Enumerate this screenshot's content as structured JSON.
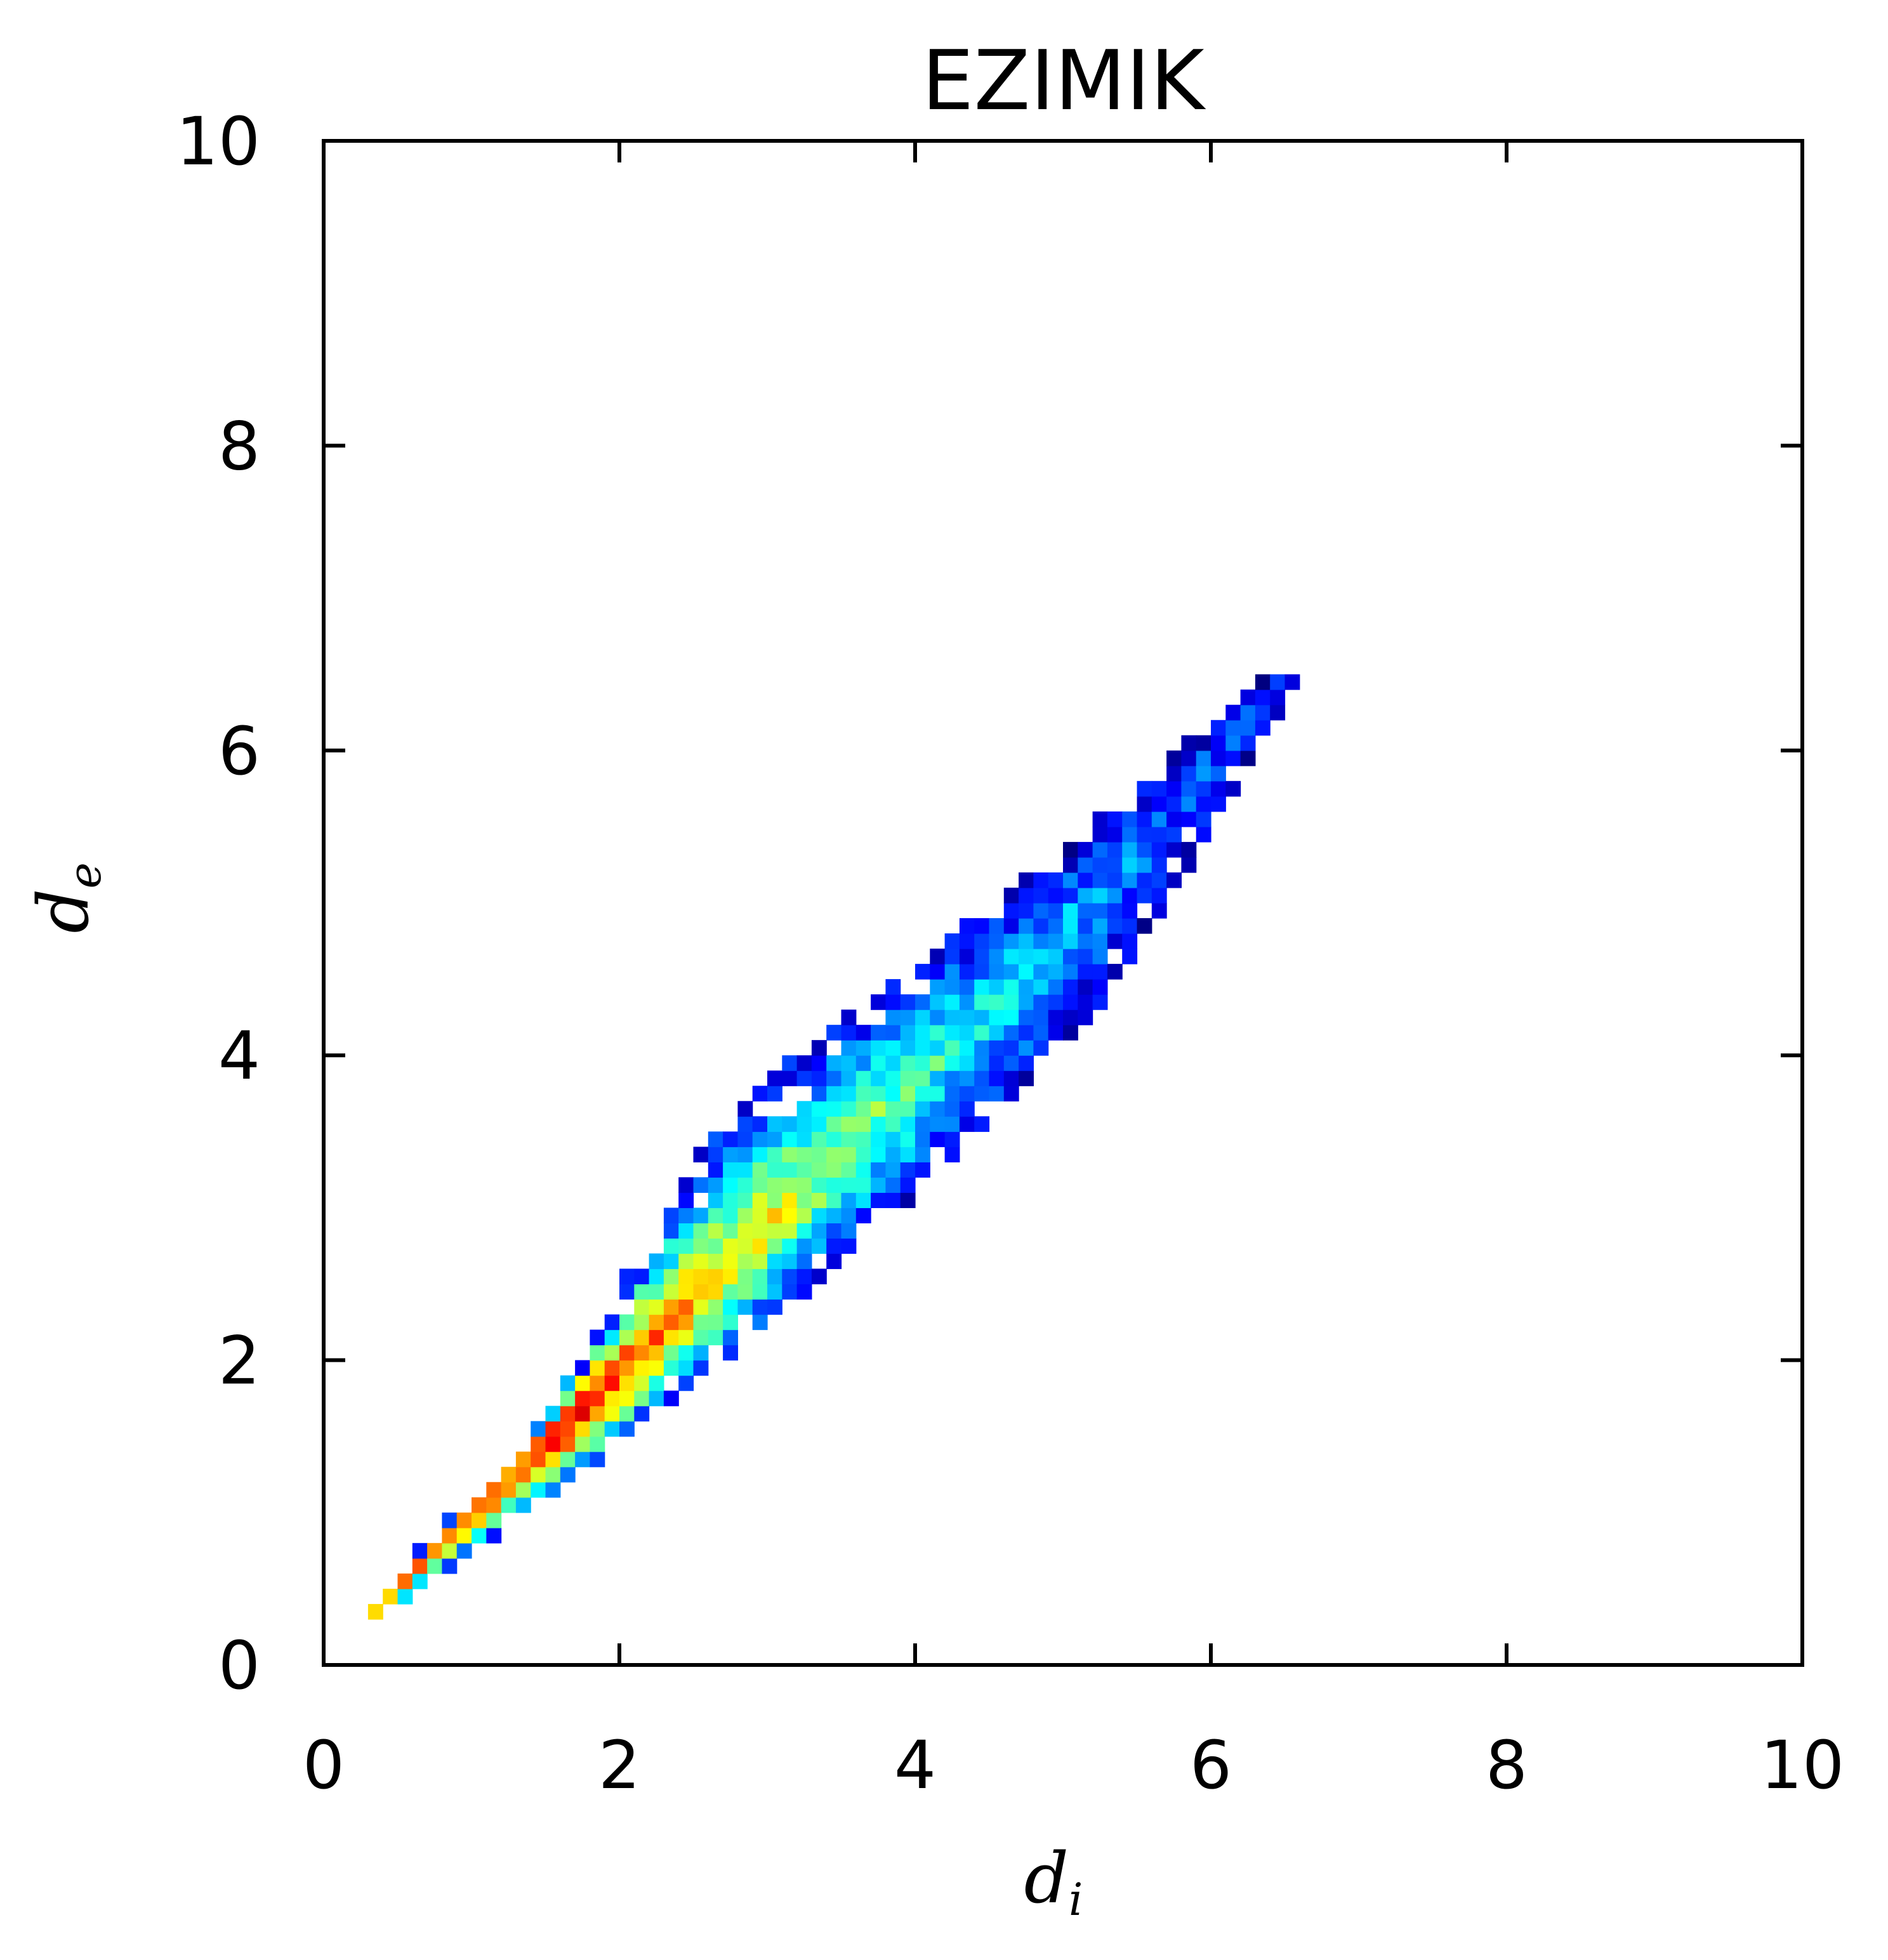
{
  "chart_data": {
    "type": "heatmap",
    "title": "EZIMIK",
    "xlabel": "d",
    "xlabel_sub": "i",
    "ylabel": "d",
    "ylabel_sub": "e",
    "xlim": [
      0,
      10
    ],
    "ylim": [
      0,
      10
    ],
    "x_ticks": [
      0,
      2,
      4,
      6,
      8,
      10
    ],
    "y_ticks": [
      0,
      2,
      4,
      6,
      8,
      10
    ],
    "x_tick_labels": [
      "0",
      "2",
      "4",
      "6",
      "8",
      "10"
    ],
    "y_tick_labels": [
      "0",
      "2",
      "4",
      "6",
      "8",
      "10"
    ],
    "grid": false,
    "colormap": "jet",
    "bin_width": 0.1,
    "density_model": {
      "segments": [
        {
          "start": [
            0.34,
            0.34
          ],
          "end": [
            1.6,
            1.55
          ],
          "density": [
            0.72,
            0.96
          ],
          "width_lower": [
            0.06,
            0.32
          ],
          "width_upper": [
            0.06,
            0.14
          ]
        },
        {
          "start": [
            1.6,
            1.55
          ],
          "end": [
            3.2,
            3.1
          ],
          "density": [
            0.96,
            0.58
          ],
          "width_lower": [
            0.32,
            0.55
          ],
          "width_upper": [
            0.14,
            0.72
          ]
        },
        {
          "start": [
            3.2,
            3.1
          ],
          "end": [
            4.8,
            4.6
          ],
          "density": [
            0.58,
            0.34
          ],
          "width_lower": [
            0.55,
            0.55
          ],
          "width_upper": [
            0.72,
            0.48
          ]
        },
        {
          "start": [
            4.8,
            4.6
          ],
          "end": [
            6.5,
            6.5
          ],
          "density": [
            0.34,
            0.15
          ],
          "width_lower": [
            0.55,
            0.12
          ],
          "width_upper": [
            0.48,
            0.06
          ]
        }
      ]
    }
  }
}
